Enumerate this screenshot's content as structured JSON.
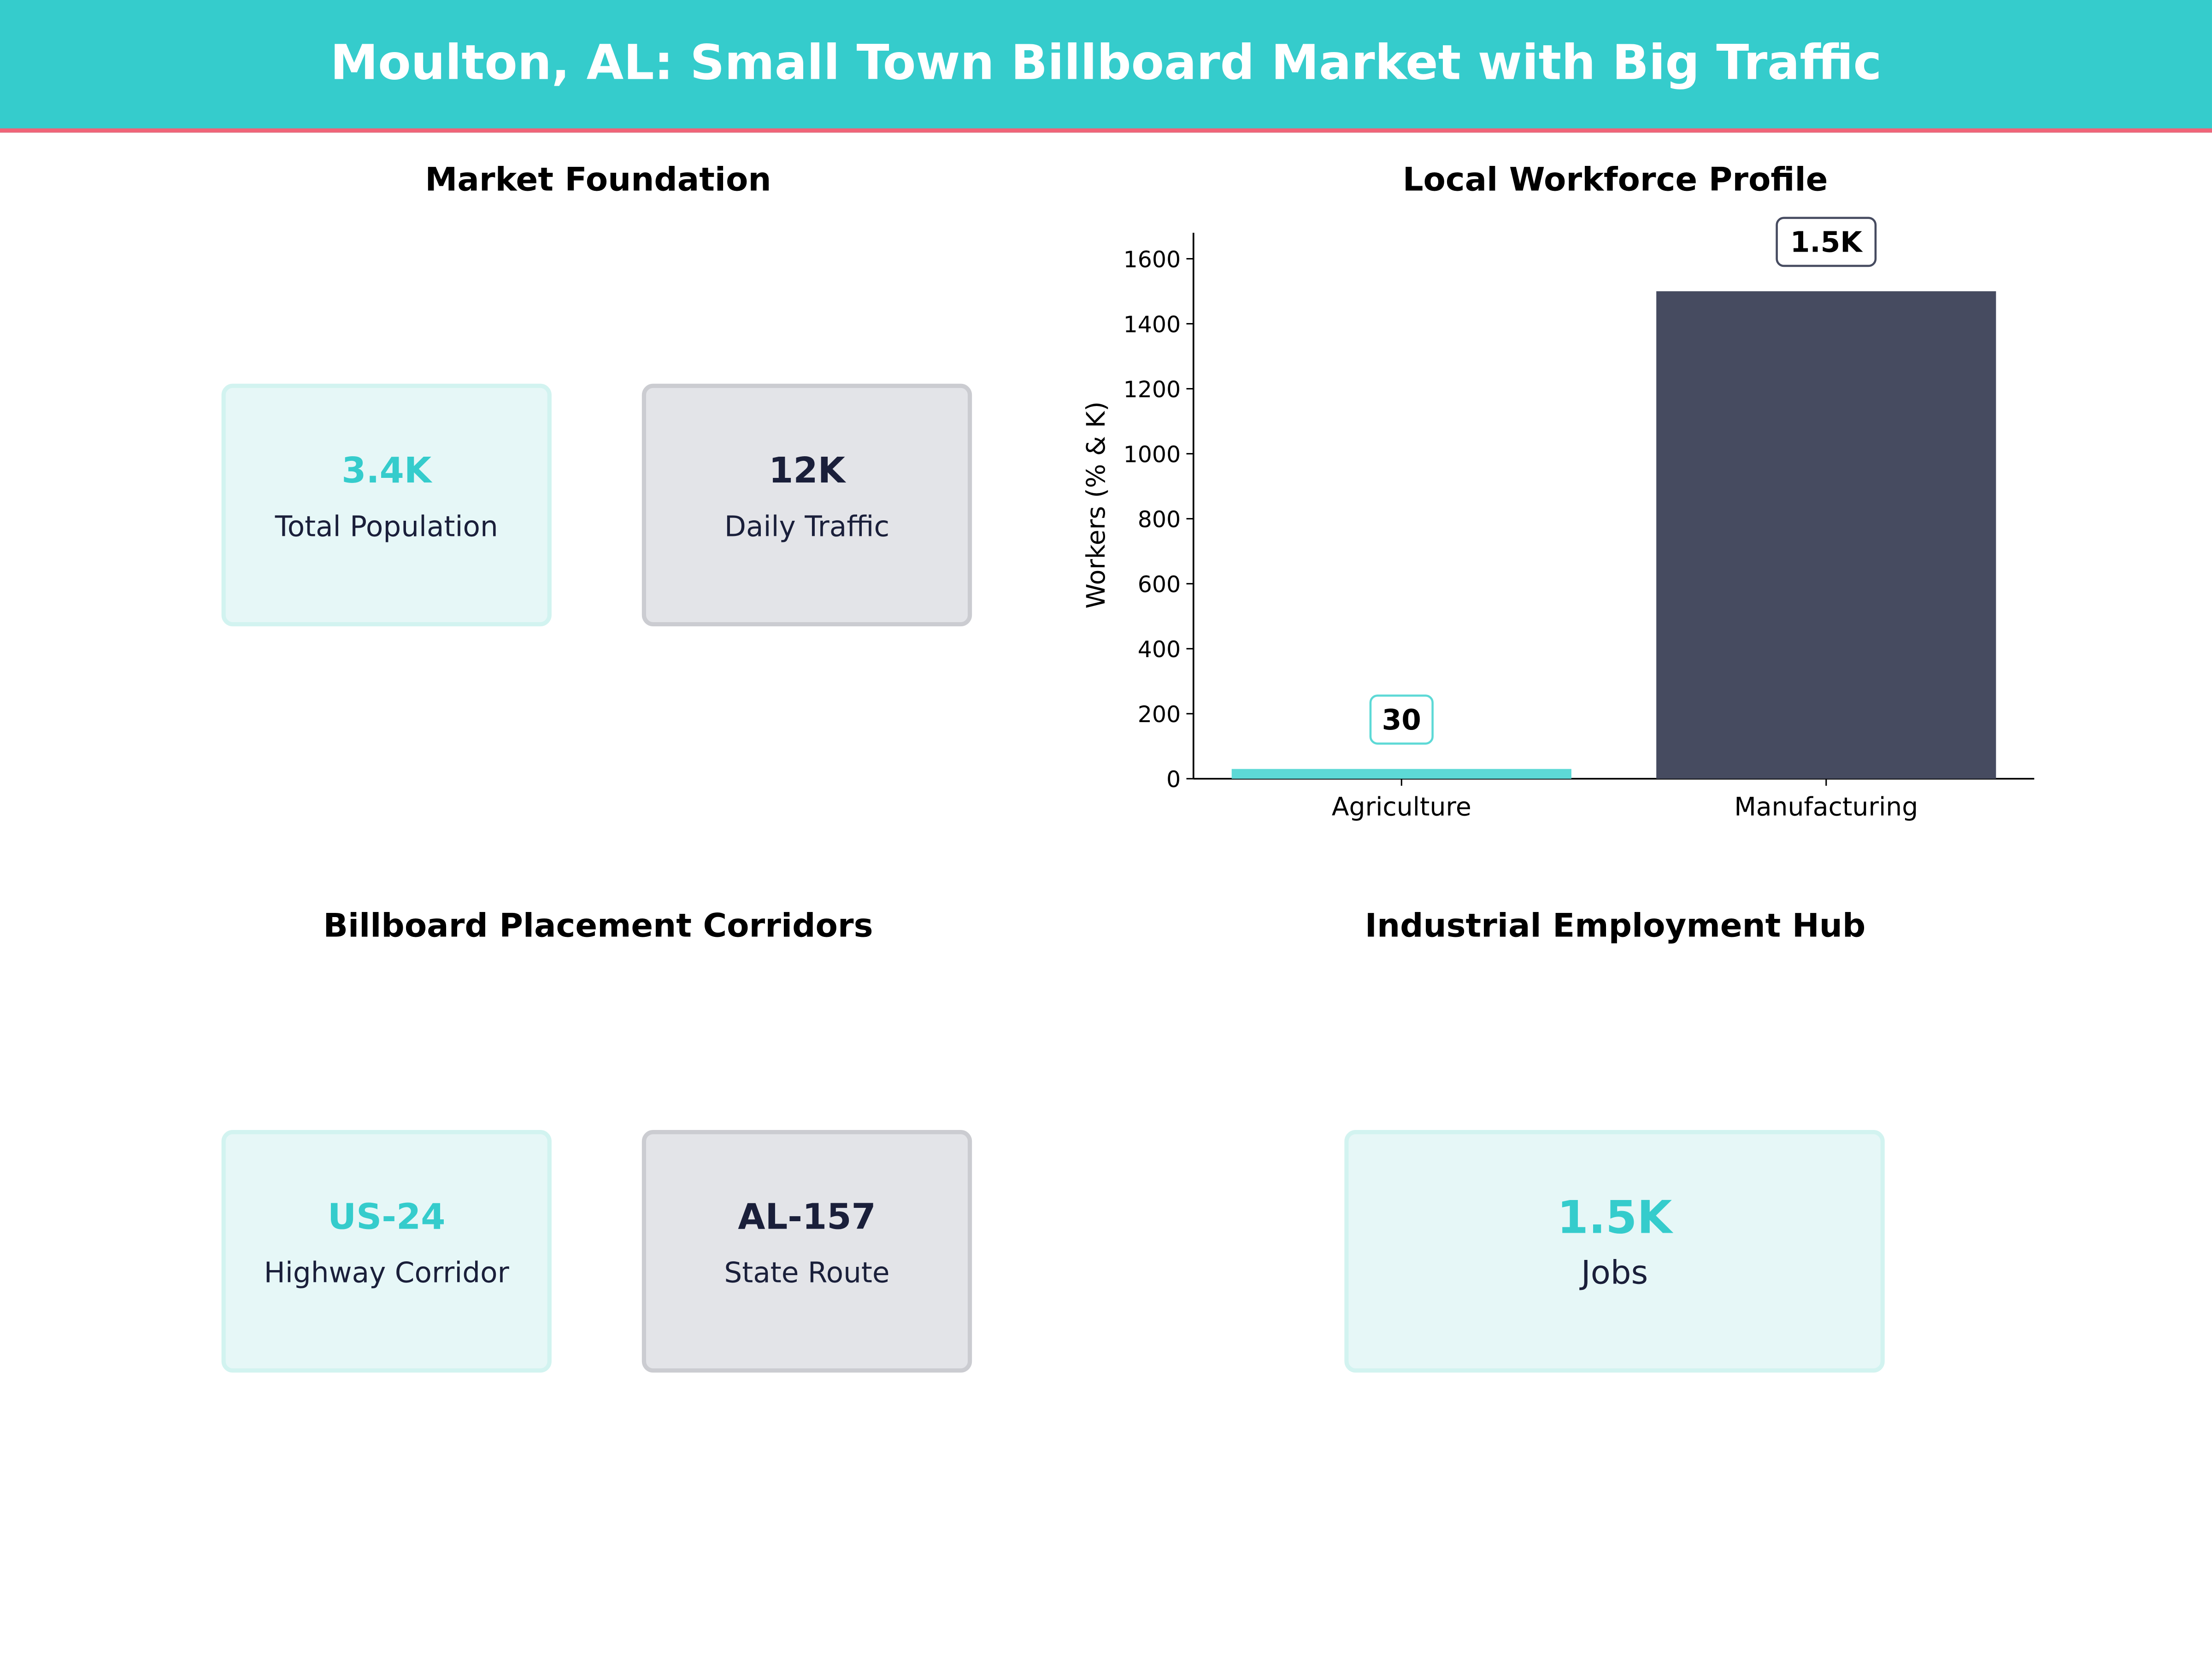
{
  "title": "Moulton, AL: Small Town Billboard Market with Big Traffic",
  "colors": {
    "header": "#35cccc",
    "accent_line": "#f06478",
    "teal": "#35cccc",
    "navy": "#1a1f3a",
    "bar_teal": "#5dd9d6",
    "bar_navy": "#464b60"
  },
  "panels": {
    "market": {
      "title": "Market Foundation",
      "cards": [
        {
          "value": "3.4K",
          "label": "Total Population"
        },
        {
          "value": "12K",
          "label": "Daily Traffic"
        }
      ]
    },
    "corridors": {
      "title": "Billboard Placement Corridors",
      "cards": [
        {
          "value": "US-24",
          "label": "Highway Corridor"
        },
        {
          "value": "AL-157",
          "label": "State Route"
        }
      ]
    },
    "hub": {
      "title": "Industrial Employment Hub",
      "card": {
        "value": "1.5K",
        "label": "Jobs"
      }
    }
  },
  "chart_data": {
    "type": "bar",
    "title": "Local Workforce Profile",
    "categories": [
      "Agriculture",
      "Manufacturing"
    ],
    "values": [
      30,
      1500
    ],
    "data_labels": [
      "30",
      "1.5K"
    ],
    "ylabel": "Workers (% & K)",
    "xlabel": "",
    "ylim": [
      0,
      1680
    ],
    "yticks": [
      0,
      200,
      400,
      600,
      800,
      1000,
      1200,
      1400,
      1600
    ],
    "bar_colors": [
      "#5dd9d6",
      "#464b60"
    ],
    "grid": false
  }
}
